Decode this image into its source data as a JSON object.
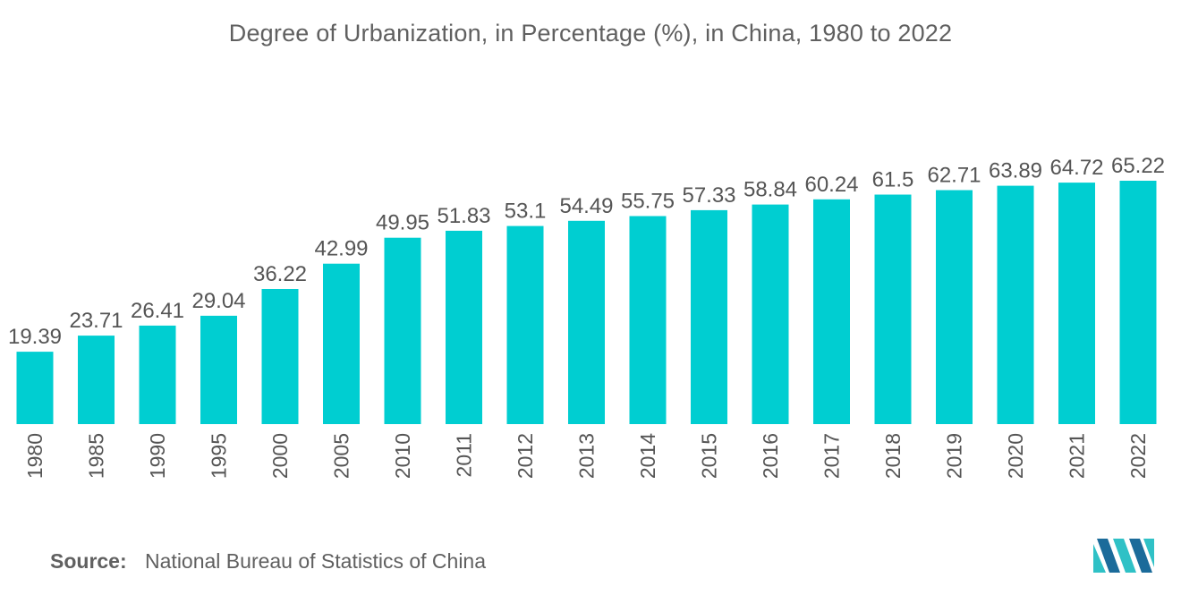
{
  "chart_data": {
    "type": "bar",
    "title": "Degree of Urbanization, in Percentage (%), in China, 1980 to 2022",
    "categories": [
      "1980",
      "1985",
      "1990",
      "1995",
      "2000",
      "2005",
      "2010",
      "2011",
      "2012",
      "2013",
      "2014",
      "2015",
      "2016",
      "2017",
      "2018",
      "2019",
      "2020",
      "2021",
      "2022"
    ],
    "values": [
      19.39,
      23.71,
      26.41,
      29.04,
      36.22,
      42.99,
      49.95,
      51.83,
      53.1,
      54.49,
      55.75,
      57.33,
      58.84,
      60.24,
      61.5,
      62.71,
      63.89,
      64.72,
      65.22
    ],
    "value_labels": [
      "19.39",
      "23.71",
      "26.41",
      "29.04",
      "36.22",
      "42.99",
      "49.95",
      "51.83",
      "53.1",
      "54.49",
      "55.75",
      "57.33",
      "58.84",
      "60.24",
      "61.5",
      "62.71",
      "63.89",
      "64.72",
      "65.22"
    ],
    "xlabel": "",
    "ylabel": "",
    "ylim": [
      0,
      70
    ],
    "grid": false,
    "bar_color": "#00CED1"
  },
  "source": {
    "label": "Source:",
    "text": "National Bureau of Statistics of China"
  },
  "logo": {
    "icon": "mordor-intelligence-logo-icon",
    "colors": [
      "#1B6B9A",
      "#2FC1C6"
    ]
  }
}
